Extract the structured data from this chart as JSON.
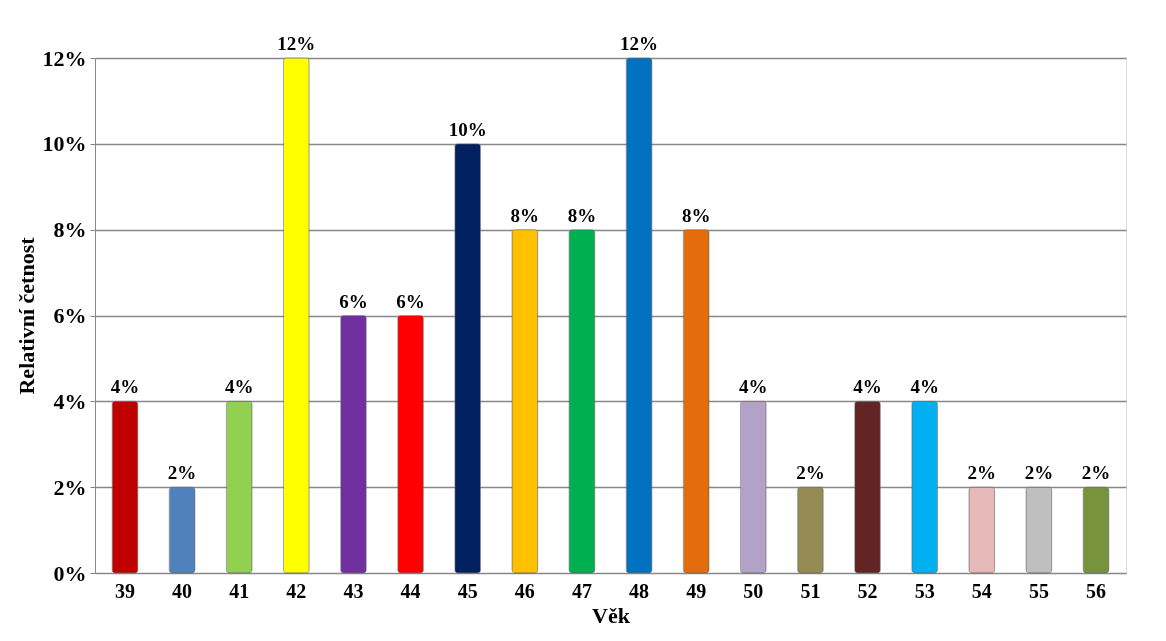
{
  "chart_data": {
    "type": "bar",
    "xlabel": "Věk",
    "ylabel": "Relativní četnost",
    "categories": [
      "39",
      "40",
      "41",
      "42",
      "43",
      "44",
      "45",
      "46",
      "47",
      "48",
      "49",
      "50",
      "51",
      "52",
      "53",
      "54",
      "55",
      "56"
    ],
    "values": [
      4,
      2,
      4,
      12,
      6,
      6,
      10,
      8,
      8,
      12,
      8,
      4,
      2,
      4,
      4,
      2,
      2,
      2
    ],
    "value_labels": [
      "4%",
      "2%",
      "4%",
      "12%",
      "6%",
      "6%",
      "10%",
      "8%",
      "8%",
      "12%",
      "8%",
      "4%",
      "2%",
      "4%",
      "4%",
      "2%",
      "2%",
      "2%"
    ],
    "colors": [
      "#c00000",
      "#4f81bd",
      "#92d050",
      "#ffff00",
      "#7030a0",
      "#ff0000",
      "#002060",
      "#ffc000",
      "#00b050",
      "#0070c0",
      "#e46c0a",
      "#b3a2c7",
      "#948a54",
      "#632523",
      "#00b0f0",
      "#e6b9b8",
      "#bfbfbf",
      "#77933c"
    ],
    "ylim": [
      0,
      12
    ],
    "yticks": [
      {
        "value": 0,
        "label": "0%"
      },
      {
        "value": 2,
        "label": "2%"
      },
      {
        "value": 4,
        "label": "4%"
      },
      {
        "value": 6,
        "label": "6%"
      },
      {
        "value": 8,
        "label": "8%"
      },
      {
        "value": 10,
        "label": "10%"
      },
      {
        "value": 12,
        "label": "12%"
      }
    ],
    "grid": "y"
  }
}
